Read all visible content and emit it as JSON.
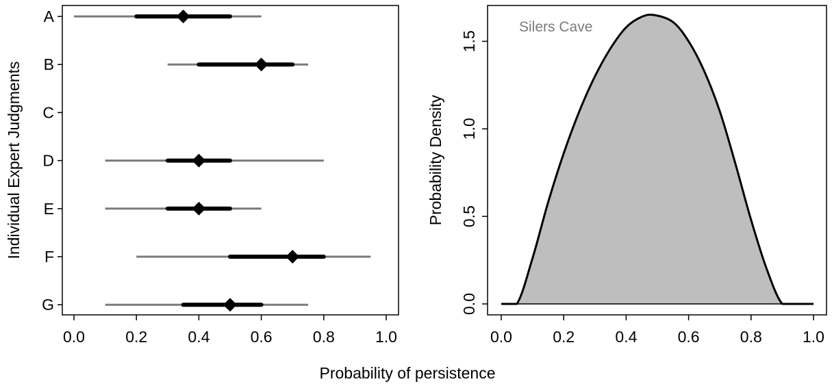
{
  "figure": {
    "shared_xlabel": "Probability of persistence"
  },
  "chart_data": [
    {
      "type": "interval",
      "title": "",
      "ylabel": "Individual Expert Judgments",
      "xlabel": "",
      "xlim": [
        0,
        1
      ],
      "xticks": [
        "0.0",
        "0.2",
        "0.4",
        "0.6",
        "0.8",
        "1.0"
      ],
      "xtick_values": [
        0,
        0.2,
        0.4,
        0.6,
        0.8,
        1.0
      ],
      "grid": false,
      "colors": {
        "outer": "#7a7a7a",
        "inner": "#000000",
        "point": "#000000"
      },
      "experts": [
        {
          "name": "A",
          "outer_low": 0.0,
          "outer_high": 0.6,
          "inner_low": 0.2,
          "inner_high": 0.5,
          "best": 0.35
        },
        {
          "name": "B",
          "outer_low": 0.3,
          "outer_high": 0.75,
          "inner_low": 0.4,
          "inner_high": 0.7,
          "best": 0.6
        },
        {
          "name": "C",
          "outer_low": null,
          "outer_high": null,
          "inner_low": null,
          "inner_high": null,
          "best": null
        },
        {
          "name": "D",
          "outer_low": 0.1,
          "outer_high": 0.8,
          "inner_low": 0.3,
          "inner_high": 0.5,
          "best": 0.4
        },
        {
          "name": "E",
          "outer_low": 0.1,
          "outer_high": 0.6,
          "inner_low": 0.3,
          "inner_high": 0.5,
          "best": 0.4
        },
        {
          "name": "F",
          "outer_low": 0.2,
          "outer_high": 0.95,
          "inner_low": 0.5,
          "inner_high": 0.8,
          "best": 0.7
        },
        {
          "name": "G",
          "outer_low": 0.1,
          "outer_high": 0.75,
          "inner_low": 0.35,
          "inner_high": 0.6,
          "best": 0.5
        }
      ]
    },
    {
      "type": "area",
      "title": "",
      "annotation": "Silers Cave",
      "ylabel": "Probability Density",
      "xlabel": "",
      "xlim": [
        0,
        1
      ],
      "ylim": [
        0,
        1.65
      ],
      "xticks": [
        "0.0",
        "0.2",
        "0.4",
        "0.6",
        "0.8",
        "1.0"
      ],
      "xtick_values": [
        0,
        0.2,
        0.4,
        0.6,
        0.8,
        1.0
      ],
      "yticks": [
        "0.0",
        "0.5",
        "1.0",
        "1.5"
      ],
      "ytick_values": [
        0,
        0.5,
        1.0,
        1.5
      ],
      "grid": false,
      "colors": {
        "fill": "#bebebe",
        "line": "#000000",
        "annotation": "#7a7a7a"
      },
      "x": [
        0.0,
        0.05,
        0.1,
        0.15,
        0.2,
        0.25,
        0.3,
        0.35,
        0.4,
        0.45,
        0.49,
        0.55,
        0.6,
        0.65,
        0.7,
        0.75,
        0.8,
        0.85,
        0.9,
        0.95,
        1.0
      ],
      "y": [
        0.0,
        0.0,
        0.26,
        0.58,
        0.86,
        1.1,
        1.3,
        1.46,
        1.58,
        1.64,
        1.65,
        1.61,
        1.5,
        1.33,
        1.1,
        0.8,
        0.48,
        0.2,
        0.0,
        0.0,
        0.0
      ]
    }
  ]
}
